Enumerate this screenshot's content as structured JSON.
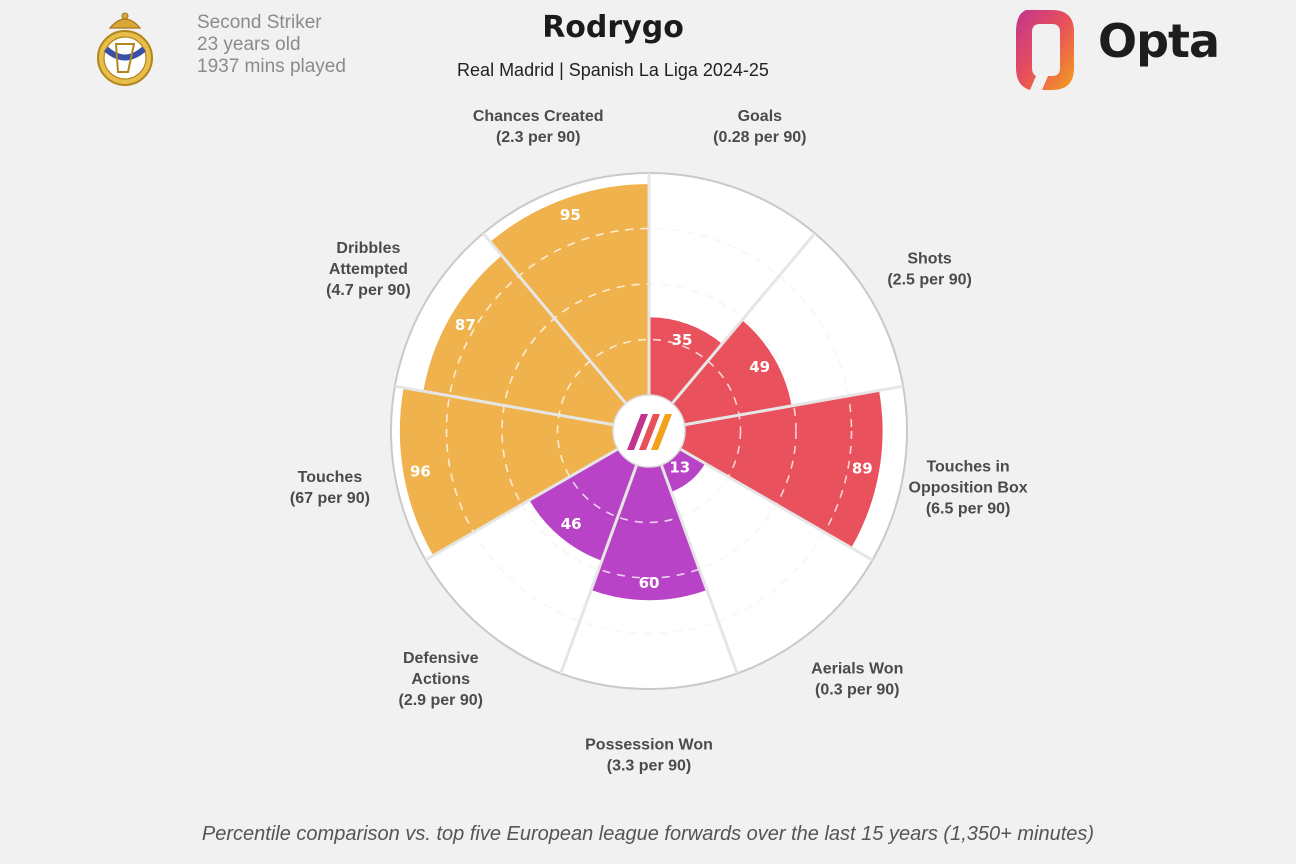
{
  "header": {
    "position": "Second Striker",
    "age": "23 years old",
    "minutes": "1937 mins played",
    "title": "Rodrygo",
    "subtitle": "Real Madrid | Spanish La Liga 2024-25",
    "brand": "Opta"
  },
  "footnote": "Percentile comparison vs. top five European league forwards over the last 15 years (1,350+ minutes)",
  "colors": {
    "attacking": "#f0b24d",
    "shooting": "#e9515c",
    "defending": "#b943c7",
    "outer_ring": "#c9c9c9",
    "background": "#f1f1f2"
  },
  "chart_data": {
    "type": "polar-bar",
    "title": "Rodrygo",
    "scale": [
      0,
      100
    ],
    "segments": [
      {
        "metric": "Goals",
        "rate": "(0.28 per 90)",
        "percentile": 35,
        "group": "shooting"
      },
      {
        "metric": "Shots",
        "rate": "(2.5 per 90)",
        "percentile": 49,
        "group": "shooting"
      },
      {
        "metric": "Touches in Opposition Box",
        "rate": "(6.5 per 90)",
        "percentile": 89,
        "group": "shooting"
      },
      {
        "metric": "Aerials Won",
        "rate": "(0.3 per 90)",
        "percentile": 13,
        "group": "defending"
      },
      {
        "metric": "Possession Won",
        "rate": "(3.3 per 90)",
        "percentile": 60,
        "group": "defending"
      },
      {
        "metric": "Defensive Actions",
        "rate": "(2.9 per 90)",
        "percentile": 46,
        "group": "defending"
      },
      {
        "metric": "Touches",
        "rate": "(67 per 90)",
        "percentile": 96,
        "group": "attacking"
      },
      {
        "metric": "Dribbles Attempted",
        "rate": "(4.7 per 90)",
        "percentile": 87,
        "group": "attacking"
      },
      {
        "metric": "Chances Created",
        "rate": "(2.3 per 90)",
        "percentile": 95,
        "group": "attacking"
      }
    ]
  }
}
